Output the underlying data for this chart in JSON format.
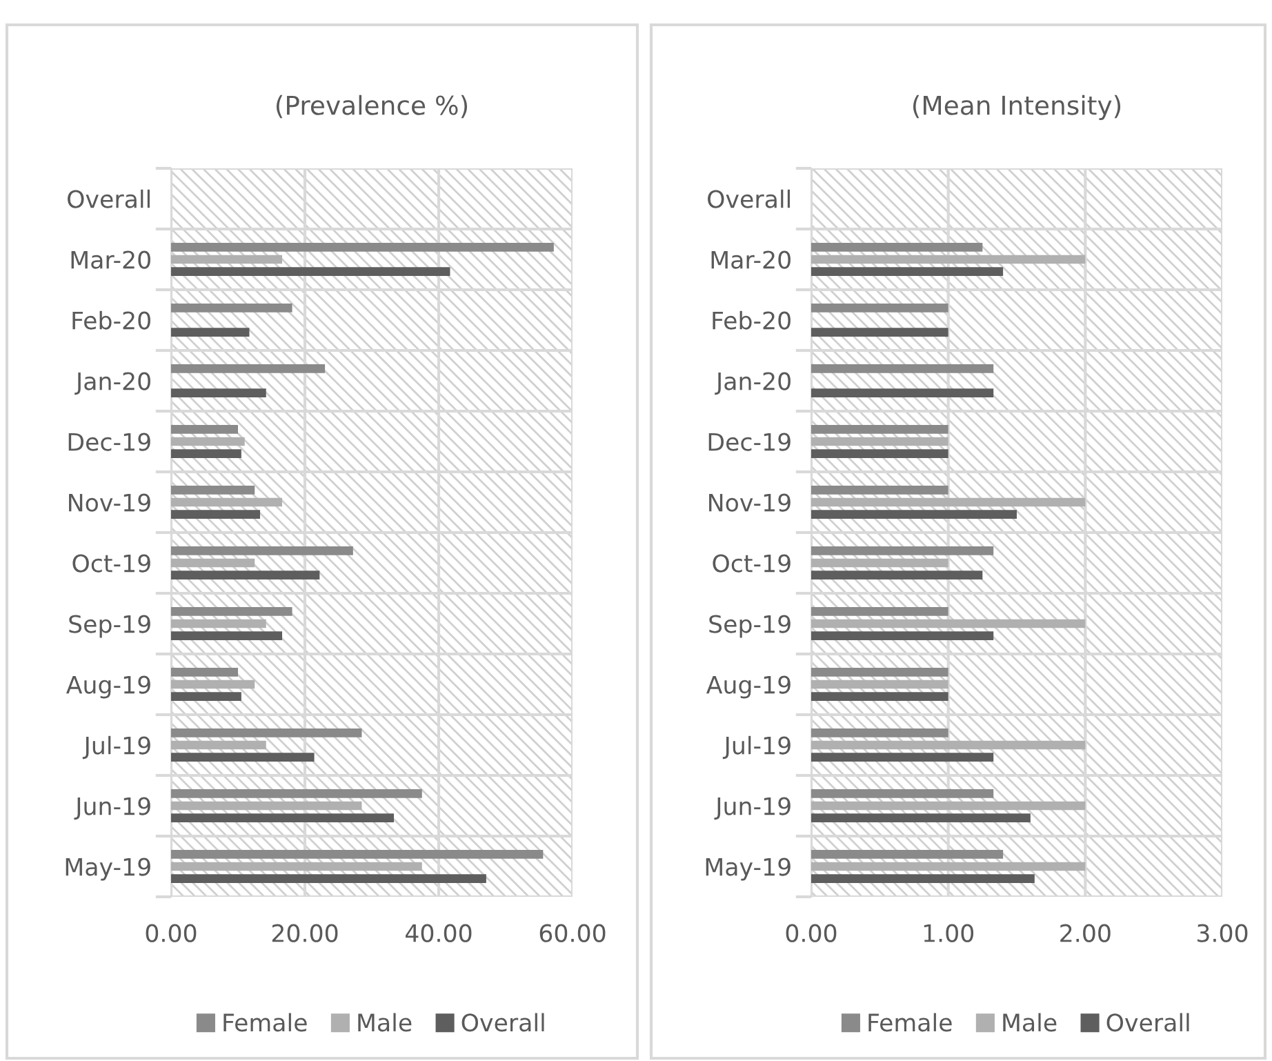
{
  "chart_data": [
    {
      "type": "bar",
      "orientation": "horizontal",
      "title": "(Prevalence %)",
      "categories": [
        "Overall",
        "Mar-20",
        "Feb-20",
        "Jan-20",
        "Dec-19",
        "Nov-19",
        "Oct-19",
        "Sep-19",
        "Aug-19",
        "Jul-19",
        "Jun-19",
        "May-19"
      ],
      "series": [
        {
          "name": "Female",
          "color": "#8a8a8a",
          "values": [
            null,
            57.2,
            18.1,
            23.0,
            10.0,
            12.5,
            27.2,
            18.1,
            10.0,
            28.5,
            37.5,
            55.6
          ]
        },
        {
          "name": "Male",
          "color": "#b0b0b0",
          "values": [
            null,
            16.6,
            null,
            null,
            11.0,
            16.6,
            12.5,
            14.2,
            12.5,
            14.2,
            28.5,
            37.5
          ]
        },
        {
          "name": "Overall",
          "color": "#5e5e5e",
          "values": [
            null,
            41.7,
            11.7,
            14.2,
            10.5,
            13.3,
            22.2,
            16.6,
            10.5,
            21.4,
            33.3,
            47.1
          ]
        }
      ],
      "xlim": [
        0,
        60
      ],
      "xticks": [
        {
          "value": 0,
          "label": "0.00"
        },
        {
          "value": 20,
          "label": "20.00"
        },
        {
          "value": 40,
          "label": "40.00"
        },
        {
          "value": 60,
          "label": "60.00"
        }
      ],
      "grid": true,
      "legend": "bottom"
    },
    {
      "type": "bar",
      "orientation": "horizontal",
      "title": "(Mean Intensity)",
      "categories": [
        "Overall",
        "Mar-20",
        "Feb-20",
        "Jan-20",
        "Dec-19",
        "Nov-19",
        "Oct-19",
        "Sep-19",
        "Aug-19",
        "Jul-19",
        "Jun-19",
        "May-19"
      ],
      "series": [
        {
          "name": "Female",
          "color": "#8a8a8a",
          "values": [
            null,
            1.25,
            1.0,
            1.33,
            1.0,
            1.0,
            1.33,
            1.0,
            1.0,
            1.0,
            1.33,
            1.4
          ]
        },
        {
          "name": "Male",
          "color": "#b0b0b0",
          "values": [
            null,
            2.0,
            null,
            null,
            1.0,
            2.0,
            1.0,
            2.0,
            1.0,
            2.0,
            2.0,
            2.0
          ]
        },
        {
          "name": "Overall",
          "color": "#5e5e5e",
          "values": [
            null,
            1.4,
            1.0,
            1.33,
            1.0,
            1.5,
            1.25,
            1.33,
            1.0,
            1.33,
            1.6,
            1.63
          ]
        }
      ],
      "xlim": [
        0,
        3
      ],
      "xticks": [
        {
          "value": 0,
          "label": "0.00"
        },
        {
          "value": 1,
          "label": "1.00"
        },
        {
          "value": 2,
          "label": "2.00"
        },
        {
          "value": 3,
          "label": "3.00"
        }
      ],
      "grid": true,
      "legend": "bottom"
    }
  ]
}
